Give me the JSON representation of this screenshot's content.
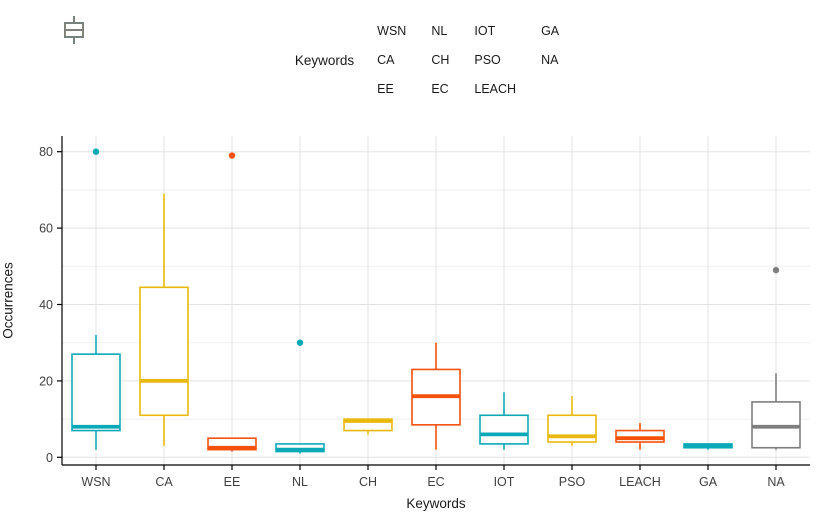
{
  "colors": {
    "teal": "#0BA8B8",
    "yellow": "#E8B80C",
    "orange": "#F4520C",
    "gray": "#7E7E7E",
    "axis_line": "#000000",
    "tick_label": "#404040",
    "grid_major": "#E3E3E3",
    "grid_minor": "#EFEFEF"
  },
  "legend": {
    "title": "Keywords",
    "columns": [
      [
        {
          "label": "WSN",
          "color": "teal"
        },
        {
          "label": "CA",
          "color": "yellow"
        },
        {
          "label": "EE",
          "color": "orange"
        }
      ],
      [
        {
          "label": "NL",
          "color": "teal"
        },
        {
          "label": "CH",
          "color": "yellow"
        },
        {
          "label": "EC",
          "color": "orange"
        }
      ],
      [
        {
          "label": "IOT",
          "color": "teal"
        },
        {
          "label": "PSO",
          "color": "yellow"
        },
        {
          "label": "LEACH",
          "color": "orange"
        }
      ],
      [
        {
          "label": "GA",
          "color": "teal"
        },
        {
          "label": "NA",
          "color": "gray"
        }
      ]
    ]
  },
  "chart_data": {
    "type": "boxplot",
    "title": "",
    "xlabel": "Keywords",
    "ylabel": "Occurrences",
    "ylim": [
      0,
      80
    ],
    "yticks": [
      0,
      20,
      40,
      60,
      80
    ],
    "minor_grid_step": 10,
    "grid": true,
    "legend_position": "top",
    "categories": [
      "WSN",
      "CA",
      "EE",
      "NL",
      "CH",
      "EC",
      "IOT",
      "PSO",
      "LEACH",
      "GA",
      "NA"
    ],
    "series": [
      {
        "name": "WSN",
        "color": "teal",
        "low": 2,
        "q1": 7,
        "median": 8,
        "q3": 27,
        "high": 32,
        "outliers": [
          80
        ]
      },
      {
        "name": "CA",
        "color": "yellow",
        "low": 3,
        "q1": 11,
        "median": 20,
        "q3": 44.5,
        "high": 69,
        "outliers": []
      },
      {
        "name": "EE",
        "color": "orange",
        "low": 1.5,
        "q1": 2,
        "median": 2.5,
        "q3": 5,
        "high": 5,
        "outliers": [
          79
        ]
      },
      {
        "name": "NL",
        "color": "teal",
        "low": 1,
        "q1": 1.5,
        "median": 2,
        "q3": 3.5,
        "high": 3.5,
        "outliers": [
          30
        ]
      },
      {
        "name": "CH",
        "color": "yellow",
        "low": 6,
        "q1": 7,
        "median": 9.5,
        "q3": 10,
        "high": 10,
        "outliers": []
      },
      {
        "name": "EC",
        "color": "orange",
        "low": 2,
        "q1": 8.5,
        "median": 16,
        "q3": 23,
        "high": 30,
        "outliers": []
      },
      {
        "name": "IOT",
        "color": "teal",
        "low": 2,
        "q1": 3.5,
        "median": 6,
        "q3": 11,
        "high": 17,
        "outliers": []
      },
      {
        "name": "PSO",
        "color": "yellow",
        "low": 3,
        "q1": 4,
        "median": 5.5,
        "q3": 11,
        "high": 16,
        "outliers": []
      },
      {
        "name": "LEACH",
        "color": "orange",
        "low": 2,
        "q1": 4,
        "median": 5,
        "q3": 7,
        "high": 9,
        "outliers": []
      },
      {
        "name": "GA",
        "color": "teal",
        "low": 2,
        "q1": 2.5,
        "median": 3,
        "q3": 3.5,
        "high": 3.5,
        "outliers": []
      },
      {
        "name": "NA",
        "color": "gray",
        "low": 2,
        "q1": 2.5,
        "median": 8,
        "q3": 14.5,
        "high": 22,
        "outliers": [
          49
        ]
      }
    ]
  }
}
